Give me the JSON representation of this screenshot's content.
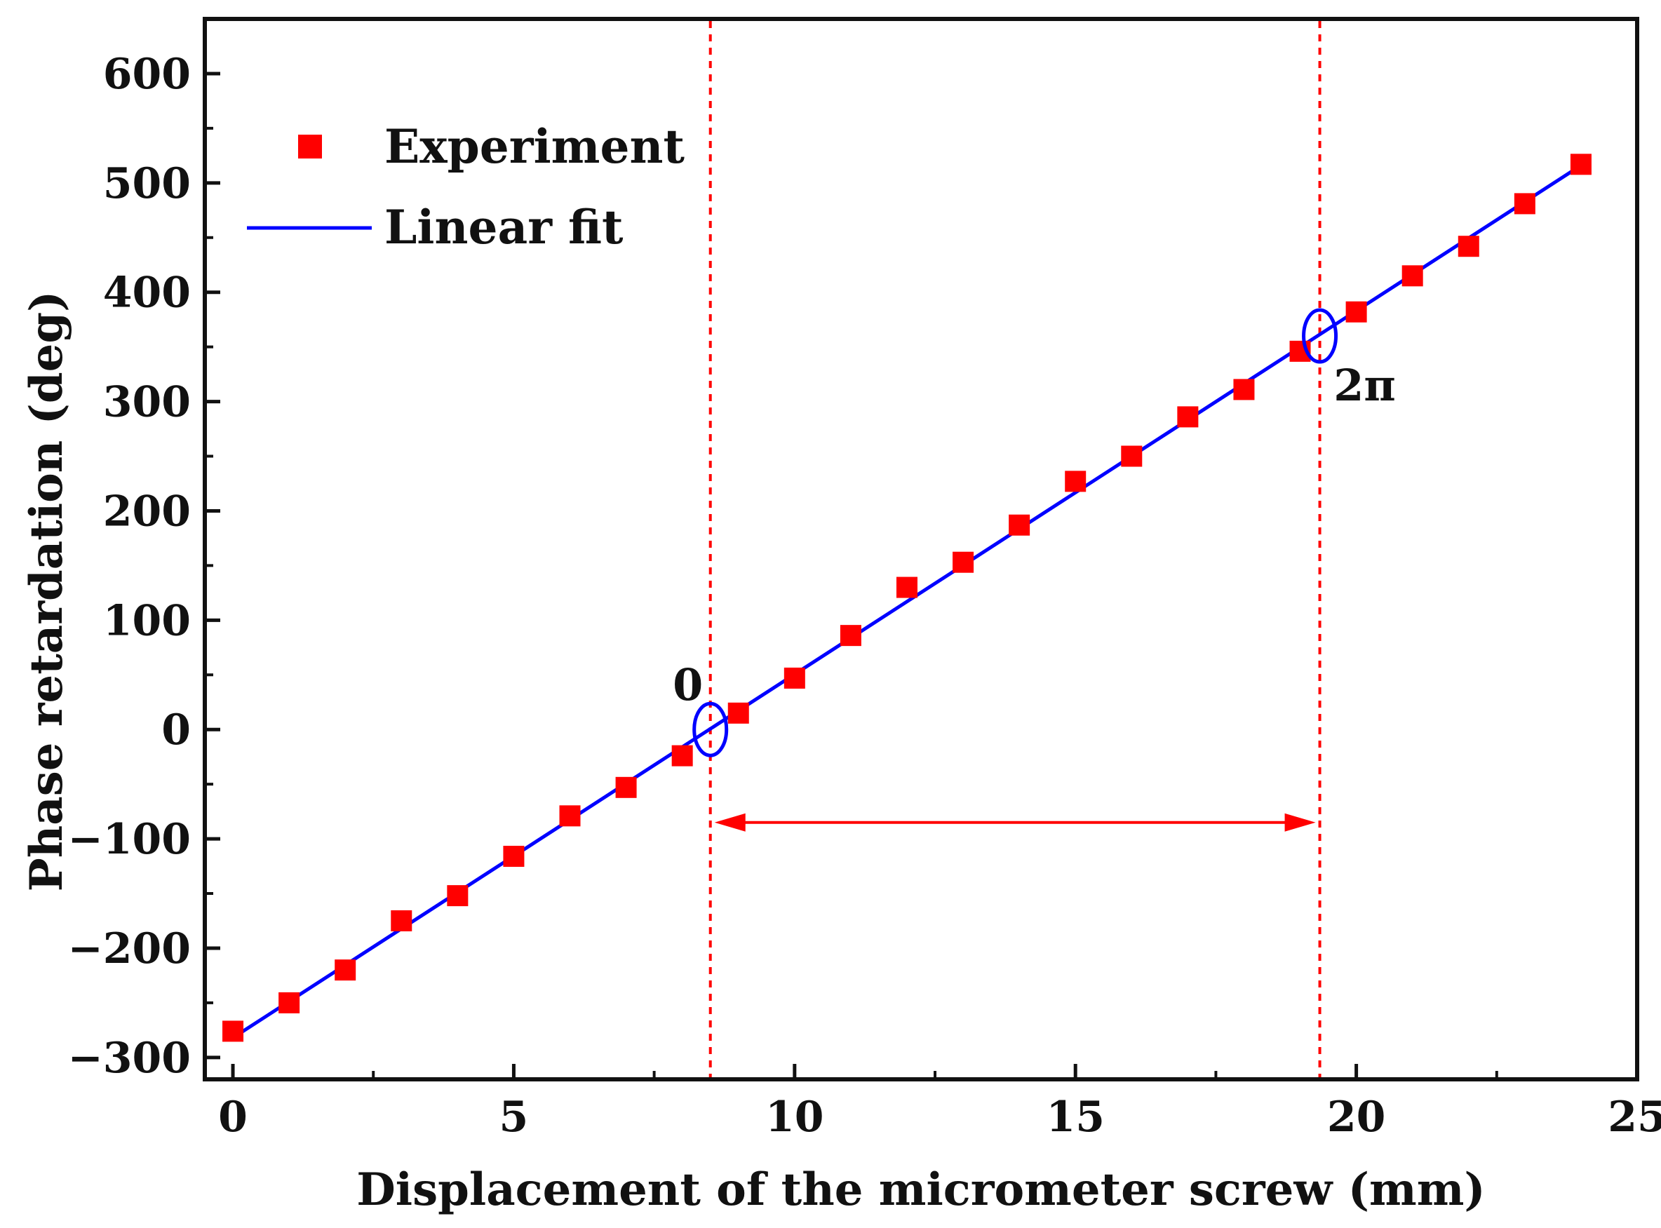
{
  "chart_data": {
    "type": "scatter",
    "title": "",
    "xlabel": "Displacement of the micrometer screw (mm)",
    "ylabel": "Phase retardation (deg)",
    "xlim": [
      -0.5,
      25
    ],
    "ylim": [
      -320,
      650
    ],
    "xticks": [
      0,
      5,
      10,
      15,
      20,
      25
    ],
    "xtick_labels": [
      "0",
      "5",
      "10",
      "15",
      "20",
      "25"
    ],
    "yticks": [
      -300,
      -200,
      -100,
      0,
      100,
      200,
      300,
      400,
      500,
      600
    ],
    "ytick_labels": [
      "−300",
      "−200",
      "−100",
      "0",
      "100",
      "200",
      "300",
      "400",
      "500",
      "600"
    ],
    "legend_position": "top-left",
    "series": [
      {
        "name": "Experiment",
        "kind": "scatter",
        "marker": "square",
        "color": "#ff0000",
        "x": [
          0,
          1,
          2,
          3,
          4,
          5,
          6,
          7,
          8,
          9,
          10,
          11,
          12,
          13,
          14,
          15,
          16,
          17,
          18,
          19,
          20,
          21,
          22,
          23,
          24
        ],
        "y": [
          -276,
          -250,
          -220,
          -175,
          -152,
          -116,
          -79,
          -53,
          -24,
          15,
          47,
          86,
          130,
          153,
          187,
          227,
          250,
          286,
          311,
          346,
          382,
          415,
          442,
          481,
          517
        ]
      },
      {
        "name": "Linear fit",
        "kind": "line",
        "color": "#0000ff",
        "x": [
          0,
          24
        ],
        "y": [
          -282,
          516
        ]
      }
    ],
    "reference_lines": [
      {
        "axis": "x",
        "value": 8.5,
        "style": "dashed",
        "color": "#ff0000"
      },
      {
        "axis": "x",
        "value": 19.35,
        "style": "dashed",
        "color": "#ff0000"
      }
    ],
    "span_arrow": {
      "from_x": 8.5,
      "to_x": 19.35,
      "y": -85,
      "color": "#ff0000"
    },
    "annotations": [
      {
        "text": "0",
        "x": 8.5,
        "y": 0,
        "marker": "ellipse",
        "color": "#0000ff"
      },
      {
        "text": "2π",
        "x": 19.35,
        "y": 360,
        "marker": "ellipse",
        "color": "#0000ff"
      }
    ]
  }
}
